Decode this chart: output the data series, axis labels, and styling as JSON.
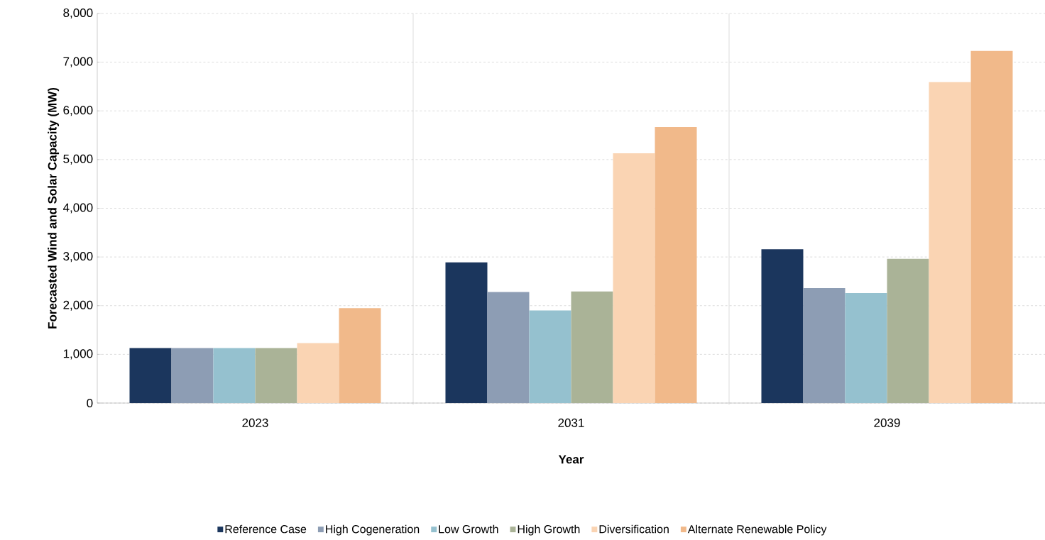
{
  "chart_data": {
    "type": "bar",
    "xlabel": "Year",
    "ylabel": "Forecasted Wind and Solar Capacity (MW)",
    "categories": [
      "2023",
      "2031",
      "2039"
    ],
    "series": [
      {
        "name": "Reference Case",
        "color": "#1b365d",
        "values": [
          1130,
          2890,
          3160
        ]
      },
      {
        "name": "High Cogeneration",
        "color": "#8d9db4",
        "values": [
          1130,
          2280,
          2360
        ]
      },
      {
        "name": "Low Growth",
        "color": "#95c1cf",
        "values": [
          1130,
          1900,
          2260
        ]
      },
      {
        "name": "High Growth",
        "color": "#aab397",
        "values": [
          1130,
          2290,
          2960
        ]
      },
      {
        "name": "Diversification",
        "color": "#fad4b3",
        "values": [
          1230,
          5130,
          6590
        ]
      },
      {
        "name": "Alternate Renewable Policy",
        "color": "#f1b98a",
        "values": [
          1950,
          5670,
          7230
        ]
      }
    ],
    "ylim": [
      0,
      8000
    ],
    "yticks": [
      0,
      {
        "value": 1000,
        "label": "1,000"
      },
      {
        "value": 2000,
        "label": "2,000"
      },
      {
        "value": 3000,
        "label": "3,000"
      },
      {
        "value": 4000,
        "label": "4,000"
      },
      {
        "value": 5000,
        "label": "5,000"
      },
      {
        "value": 6000,
        "label": "6,000"
      },
      {
        "value": 7000,
        "label": "7,000"
      },
      {
        "value": 8000,
        "label": "8,000"
      }
    ],
    "grid": true,
    "legend": "bottom"
  }
}
